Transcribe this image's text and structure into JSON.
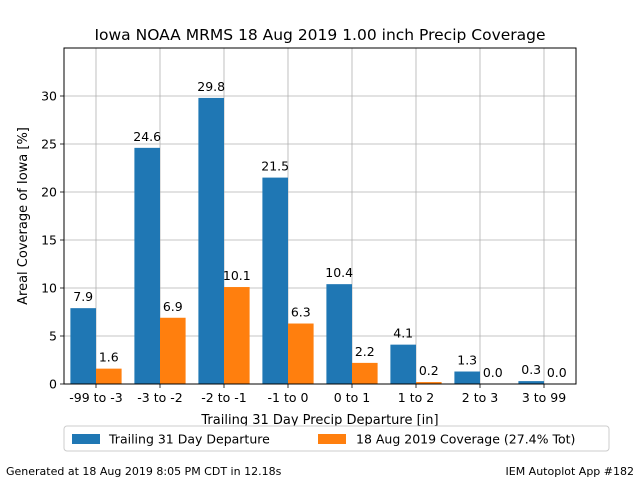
{
  "chart_data": {
    "type": "bar",
    "title": "Iowa NOAA MRMS 18 Aug 2019 1.00 inch Precip Coverage",
    "xlabel": "Trailing 31 Day Precip Departure [in]",
    "ylabel": "Areal Coverage of Iowa [%]",
    "ylim": [
      0,
      35
    ],
    "yticks": [
      0,
      5,
      10,
      15,
      20,
      25,
      30
    ],
    "grid": true,
    "legend_position": "bottom-center, below axes",
    "categories": [
      "-99 to -3",
      "-3 to -2",
      "-2 to -1",
      "-1 to 0",
      "0 to 1",
      "1 to 2",
      "2 to 3",
      "3 to 99"
    ],
    "series": [
      {
        "name": "Trailing 31 Day Departure",
        "color": "#1f77b4",
        "values": [
          7.9,
          24.6,
          29.8,
          21.5,
          10.4,
          4.1,
          1.3,
          0.3
        ],
        "labels": [
          "7.9",
          "24.6",
          "29.8",
          "21.5",
          "10.4",
          "4.1",
          "1.3",
          "0.3"
        ]
      },
      {
        "name": "18 Aug 2019 Coverage (27.4% Tot)",
        "color": "#ff7f0e",
        "values": [
          1.6,
          6.9,
          10.1,
          6.3,
          2.2,
          0.2,
          0.0,
          0.0
        ],
        "labels": [
          "1.6",
          "6.9",
          "10.1",
          "6.3",
          "2.2",
          "0.2",
          "0.0",
          "0.0"
        ]
      }
    ]
  },
  "footer": {
    "left": "Generated at 18 Aug 2019 8:05 PM CDT in 12.18s",
    "right": "IEM Autoplot App #182"
  }
}
